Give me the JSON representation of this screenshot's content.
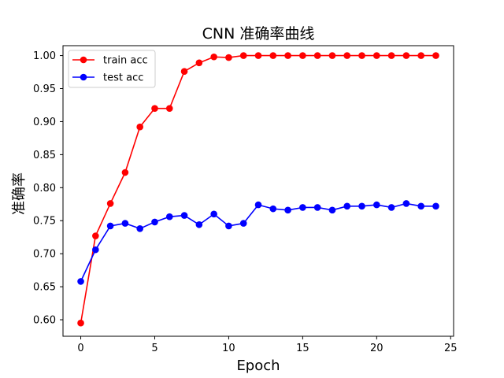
{
  "chart_data": {
    "type": "line",
    "title": "CNN 准确率曲线",
    "xlabel": "Epoch",
    "ylabel": "准确率",
    "xlim": [
      -1.2,
      25.2
    ],
    "ylim": [
      0.575,
      1.015
    ],
    "xticks": [
      0,
      5,
      10,
      15,
      20,
      25
    ],
    "yticks": [
      0.6,
      0.65,
      0.7,
      0.75,
      0.8,
      0.85,
      0.9,
      0.95,
      1.0
    ],
    "xtick_labels": [
      "0",
      "5",
      "10",
      "15",
      "20",
      "25"
    ],
    "ytick_labels": [
      "0.60",
      "0.65",
      "0.70",
      "0.75",
      "0.80",
      "0.85",
      "0.90",
      "0.95",
      "1.00"
    ],
    "grid": false,
    "legend_position": "top-left",
    "x": [
      0,
      1,
      2,
      3,
      4,
      5,
      6,
      7,
      8,
      9,
      10,
      11,
      12,
      13,
      14,
      15,
      16,
      17,
      18,
      19,
      20,
      21,
      22,
      23,
      24
    ],
    "series": [
      {
        "name": "train acc",
        "color": "#ff0000",
        "marker": "circle",
        "values": [
          0.595,
          0.727,
          0.776,
          0.823,
          0.892,
          0.92,
          0.92,
          0.976,
          0.989,
          0.998,
          0.997,
          1.0,
          1.0,
          1.0,
          1.0,
          1.0,
          1.0,
          1.0,
          1.0,
          1.0,
          1.0,
          1.0,
          1.0,
          1.0,
          1.0
        ]
      },
      {
        "name": "test acc",
        "color": "#0000ff",
        "marker": "circle",
        "values": [
          0.658,
          0.706,
          0.742,
          0.746,
          0.738,
          0.748,
          0.756,
          0.758,
          0.744,
          0.76,
          0.742,
          0.746,
          0.774,
          0.768,
          0.766,
          0.77,
          0.77,
          0.766,
          0.772,
          0.772,
          0.774,
          0.77,
          0.776,
          0.772,
          0.772
        ]
      }
    ]
  }
}
